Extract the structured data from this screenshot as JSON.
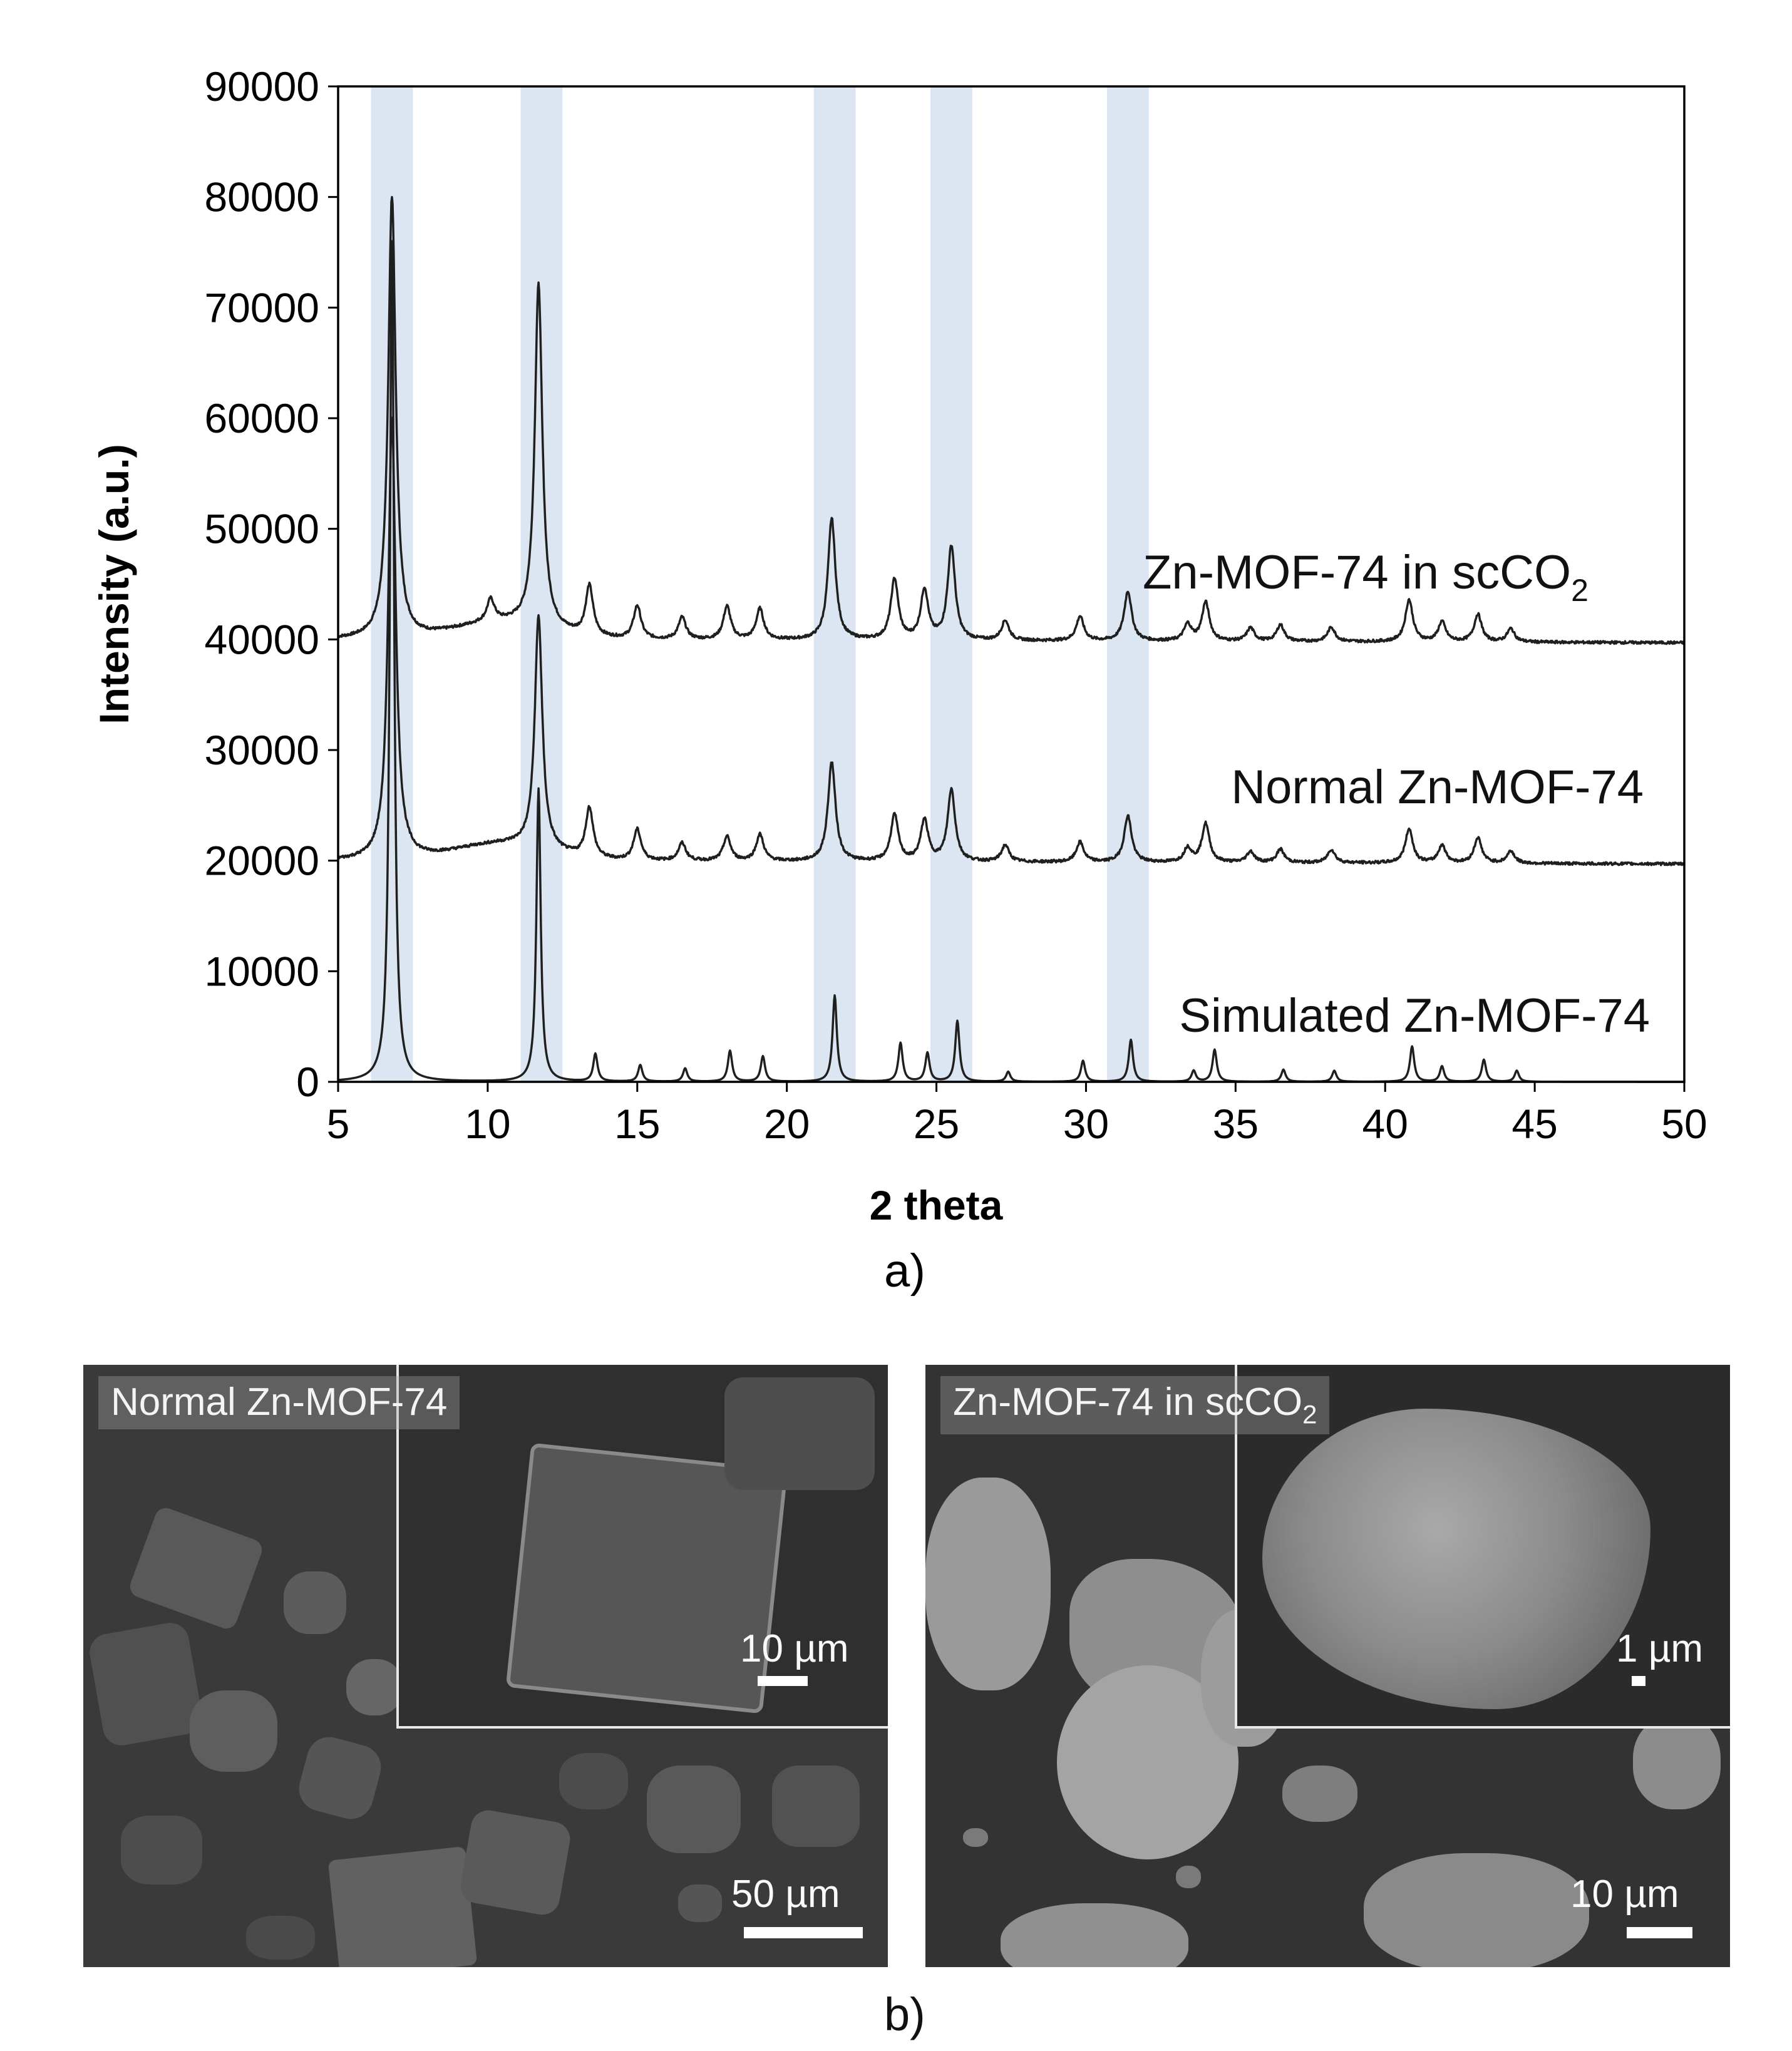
{
  "chart_data": {
    "type": "line",
    "xlabel": "2 theta",
    "ylabel": "Intensity (a.u.)",
    "xlim": [
      5,
      50
    ],
    "ylim": [
      0,
      90000
    ],
    "xticks": [
      5,
      10,
      15,
      20,
      25,
      30,
      35,
      40,
      45,
      50
    ],
    "yticks": [
      0,
      10000,
      20000,
      30000,
      40000,
      50000,
      60000,
      70000,
      80000,
      90000
    ],
    "grid": false,
    "highlight_bands": [
      [
        6.1,
        7.5
      ],
      [
        11.1,
        12.5
      ],
      [
        20.9,
        22.3
      ],
      [
        24.8,
        26.2
      ],
      [
        30.7,
        32.1
      ]
    ],
    "band_color": "#dce6f2",
    "line_color": "#1f1f1f",
    "series": [
      {
        "name": "Zn-MOF-74 in scCO2",
        "label_main": "Zn-MOF-74 in scCO",
        "label_sub": "2",
        "baseline": 40000,
        "peaks": [
          [
            6.8,
            40000
          ],
          [
            10.1,
            2000
          ],
          [
            11.7,
            31000
          ],
          [
            13.4,
            4500
          ],
          [
            15.0,
            3000
          ],
          [
            16.5,
            2000
          ],
          [
            18.0,
            3000
          ],
          [
            19.1,
            2800
          ],
          [
            21.5,
            11000
          ],
          [
            23.6,
            5500
          ],
          [
            24.6,
            4500
          ],
          [
            25.5,
            8500
          ],
          [
            27.3,
            1800
          ],
          [
            29.8,
            2200
          ],
          [
            31.4,
            4500
          ],
          [
            33.4,
            1500
          ],
          [
            34.0,
            3500
          ],
          [
            35.5,
            1200
          ],
          [
            36.5,
            1500
          ],
          [
            38.2,
            1300
          ],
          [
            40.8,
            3800
          ],
          [
            41.9,
            1800
          ],
          [
            43.1,
            2500
          ],
          [
            44.2,
            1200
          ]
        ]
      },
      {
        "name": "Normal Zn-MOF-74",
        "baseline": 20000,
        "peaks": [
          [
            6.8,
            40000
          ],
          [
            11.7,
            21000
          ],
          [
            13.4,
            4500
          ],
          [
            15.0,
            2800
          ],
          [
            16.5,
            1600
          ],
          [
            18.0,
            2200
          ],
          [
            19.1,
            2400
          ],
          [
            21.5,
            9000
          ],
          [
            23.6,
            4200
          ],
          [
            24.6,
            3700
          ],
          [
            25.5,
            6500
          ],
          [
            27.3,
            1500
          ],
          [
            29.8,
            1800
          ],
          [
            31.4,
            4200
          ],
          [
            33.4,
            1300
          ],
          [
            34.0,
            3500
          ],
          [
            35.5,
            1000
          ],
          [
            36.5,
            1200
          ],
          [
            38.2,
            1200
          ],
          [
            40.8,
            3100
          ],
          [
            41.9,
            1600
          ],
          [
            43.1,
            2300
          ],
          [
            44.2,
            1100
          ]
        ]
      },
      {
        "name": "Simulated Zn-MOF-74",
        "baseline": 0,
        "peaks": [
          [
            6.8,
            76000
          ],
          [
            11.7,
            26500
          ],
          [
            13.6,
            2500
          ],
          [
            15.1,
            1500
          ],
          [
            16.6,
            1200
          ],
          [
            18.1,
            2800
          ],
          [
            19.2,
            2300
          ],
          [
            21.6,
            7800
          ],
          [
            23.8,
            3500
          ],
          [
            24.7,
            2600
          ],
          [
            25.7,
            5500
          ],
          [
            27.4,
            900
          ],
          [
            29.9,
            1900
          ],
          [
            31.5,
            3800
          ],
          [
            33.6,
            1000
          ],
          [
            34.3,
            2900
          ],
          [
            36.6,
            1100
          ],
          [
            38.3,
            1000
          ],
          [
            40.9,
            3200
          ],
          [
            41.9,
            1400
          ],
          [
            43.3,
            2000
          ],
          [
            44.4,
            1000
          ]
        ]
      }
    ],
    "panel_label": "a)"
  },
  "sem_panel": {
    "panel_label": "b)",
    "left": {
      "title": "Normal Zn-MOF-74",
      "scale_main": "50 µm",
      "scale_inset": "10 µm"
    },
    "right": {
      "title_main": "Zn-MOF-74 in scCO",
      "title_sub": "2",
      "scale_main": "10 µm",
      "scale_inset": "1 µm"
    }
  }
}
